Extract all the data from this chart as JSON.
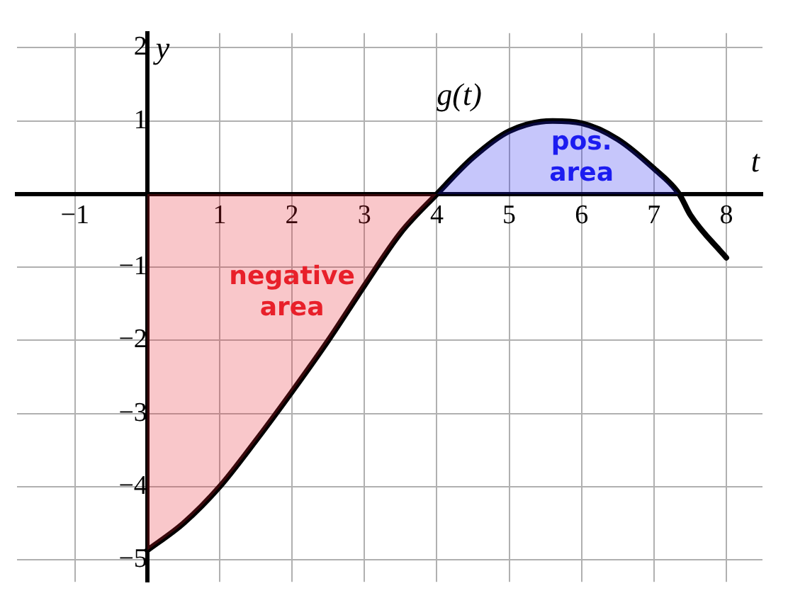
{
  "chart_data": {
    "type": "line",
    "xlabel": "t",
    "ylabel": "y",
    "x": [
      0,
      0.5,
      1,
      1.5,
      2,
      2.5,
      3,
      3.5,
      4,
      4.5,
      5,
      5.6,
      6,
      6.5,
      7,
      7.35,
      7.5,
      8
    ],
    "series": [
      {
        "type": "area",
        "color": "#e8202a",
        "x": [
          0,
          0.5,
          1,
          1.5,
          2,
          2.5,
          3,
          3.5,
          4
        ],
        "values": [
          -4.87,
          -4.5,
          -4.0,
          -3.37,
          -2.7,
          -2.0,
          -1.25,
          -0.53,
          0
        ]
      },
      {
        "type": "area",
        "color": "#1c1cf0",
        "x": [
          4,
          4.5,
          5,
          5.6,
          6,
          6.5,
          7,
          7.35
        ],
        "values": [
          0,
          0.5,
          0.86,
          1.0,
          0.97,
          0.75,
          0.35,
          0
        ]
      },
      {
        "name": "g(t)",
        "color": "#000000",
        "values": [
          -4.87,
          -4.5,
          -4.0,
          -3.37,
          -2.7,
          -2.0,
          -1.25,
          -0.53,
          0,
          0.5,
          0.86,
          1.0,
          0.97,
          0.75,
          0.35,
          0,
          -0.28,
          -0.87
        ]
      }
    ],
    "annotations": [
      "negative area",
      "pos. area"
    ],
    "xlim": [
      -1.8,
      8.5
    ],
    "ylim": [
      -5.3,
      2.2
    ],
    "xticks": [
      -1,
      1,
      2,
      3,
      4,
      5,
      6,
      7,
      8
    ],
    "yticks": [
      -5,
      -4,
      -3,
      -2,
      -1,
      1,
      2
    ],
    "grid": true,
    "legend": false,
    "marker": "none",
    "line_style": "solid"
  }
}
